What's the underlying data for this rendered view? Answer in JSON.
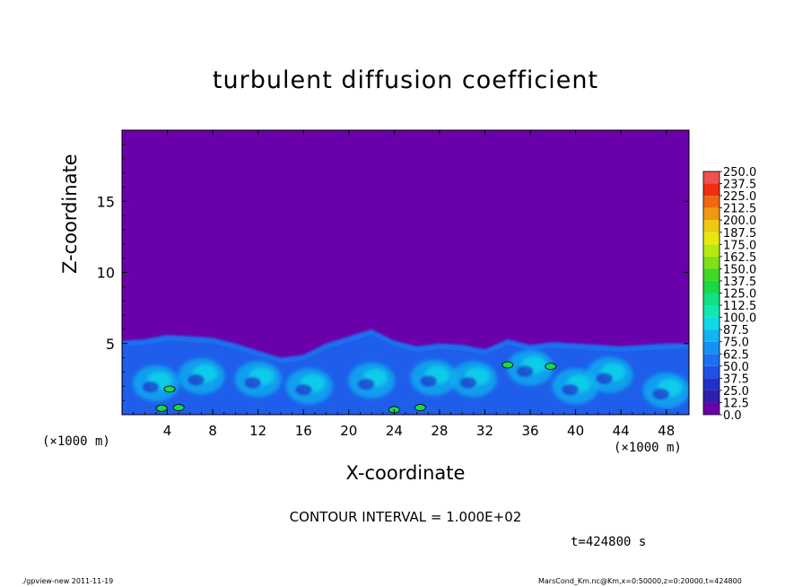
{
  "title": "turbulent diffusion coefficient",
  "xlabel": "X-coordinate",
  "ylabel": "Z-coordinate",
  "x_unit": "(×1000 m)",
  "contour_text": "CONTOUR INTERVAL = 1.000E+02",
  "time_text": "t=424800 s",
  "footer_left": "./gpview-new  2011-11-19",
  "footer_right": "MarsCond_Km.nc@Km,x=0:50000,z=0:20000,t=424800",
  "colors": {
    "background_field": "#6a00aa",
    "frame": "#000000"
  },
  "chart_data": {
    "type": "heatmap",
    "title": "turbulent diffusion coefficient",
    "xlabel": "X-coordinate",
    "ylabel": "Z-coordinate",
    "xlim": [
      0,
      50
    ],
    "ylim": [
      0,
      20
    ],
    "x_ticks": [
      4,
      8,
      12,
      16,
      20,
      24,
      28,
      32,
      36,
      40,
      44,
      48
    ],
    "y_ticks": [
      5,
      10,
      15
    ],
    "colorbar_levels": [
      "0.0",
      "12.5",
      "25.0",
      "37.5",
      "50.0",
      "62.5",
      "75.0",
      "87.5",
      "100.0",
      "112.5",
      "125.0",
      "137.5",
      "150.0",
      "162.5",
      "175.0",
      "187.5",
      "200.0",
      "212.5",
      "225.0",
      "237.5",
      "250.0"
    ],
    "colorbar_colors": [
      "#6a00aa",
      "#2f1ea8",
      "#2030c8",
      "#2050e6",
      "#1c70f0",
      "#1890f0",
      "#10b4f0",
      "#10d8e8",
      "#10e8b0",
      "#10e080",
      "#18d848",
      "#40d828",
      "#80e018",
      "#b8e810",
      "#e8e810",
      "#f0c810",
      "#f09810",
      "#f06810",
      "#f03010",
      "#f05050",
      "#f08888"
    ],
    "turbulent_layer_top": [
      [
        0,
        5.2
      ],
      [
        2,
        5.3
      ],
      [
        4,
        5.6
      ],
      [
        6,
        5.5
      ],
      [
        8,
        5.4
      ],
      [
        10,
        5.0
      ],
      [
        12,
        4.5
      ],
      [
        14,
        4.0
      ],
      [
        16,
        4.2
      ],
      [
        18,
        5.0
      ],
      [
        20,
        5.5
      ],
      [
        22,
        6.0
      ],
      [
        24,
        5.2
      ],
      [
        26,
        4.8
      ],
      [
        28,
        5.0
      ],
      [
        30,
        4.9
      ],
      [
        32,
        4.6
      ],
      [
        34,
        5.3
      ],
      [
        36,
        4.9
      ],
      [
        38,
        5.1
      ],
      [
        40,
        5.0
      ],
      [
        42,
        4.9
      ],
      [
        44,
        4.8
      ],
      [
        46,
        4.9
      ],
      [
        48,
        5.0
      ],
      [
        50,
        5.0
      ]
    ],
    "eddy_centers": [
      [
        3,
        2.2
      ],
      [
        7,
        2.7
      ],
      [
        12,
        2.5
      ],
      [
        16.5,
        2.0
      ],
      [
        22,
        2.4
      ],
      [
        27.5,
        2.6
      ],
      [
        31,
        2.5
      ],
      [
        36,
        3.3
      ],
      [
        40,
        2.0
      ],
      [
        43,
        2.8
      ],
      [
        48,
        1.7
      ]
    ],
    "high_value_patches": [
      [
        3.5,
        0.45
      ],
      [
        5,
        0.5
      ],
      [
        24,
        0.35
      ],
      [
        26.3,
        0.5
      ],
      [
        34,
        3.5
      ],
      [
        37.8,
        3.4
      ],
      [
        4.2,
        1.8
      ]
    ]
  }
}
